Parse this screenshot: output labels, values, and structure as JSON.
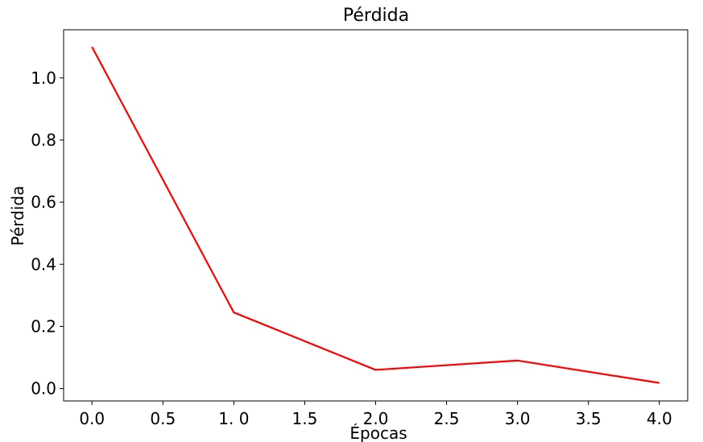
{
  "chart_data": {
    "type": "line",
    "title": "Pérdida",
    "xlabel": "Épocas",
    "ylabel": "Pérdida",
    "x": [
      0,
      1,
      2,
      3,
      4
    ],
    "series": [
      {
        "values": [
          1.1,
          0.245,
          0.06,
          0.09,
          0.018
        ],
        "color": "#ff0000"
      }
    ],
    "xlim": [
      -0.2,
      4.2
    ],
    "ylim": [
      -0.04,
      1.155
    ],
    "xticks": [
      0,
      0.5,
      1,
      1.5,
      2,
      2.5,
      3,
      3.5,
      4
    ],
    "xtick_labels": [
      "0.0",
      "0.5",
      "1. 0",
      "1.5",
      "2.0",
      "2.5",
      "3.0",
      "3.5",
      "4.0"
    ],
    "yticks": [
      0,
      0.2,
      0.4,
      0.6,
      0.8,
      1.0
    ],
    "ytick_labels": [
      "0.0",
      "0.2",
      "0.4",
      "0.6",
      "0.8",
      "1.0"
    ],
    "grid": false,
    "legend": "none"
  }
}
